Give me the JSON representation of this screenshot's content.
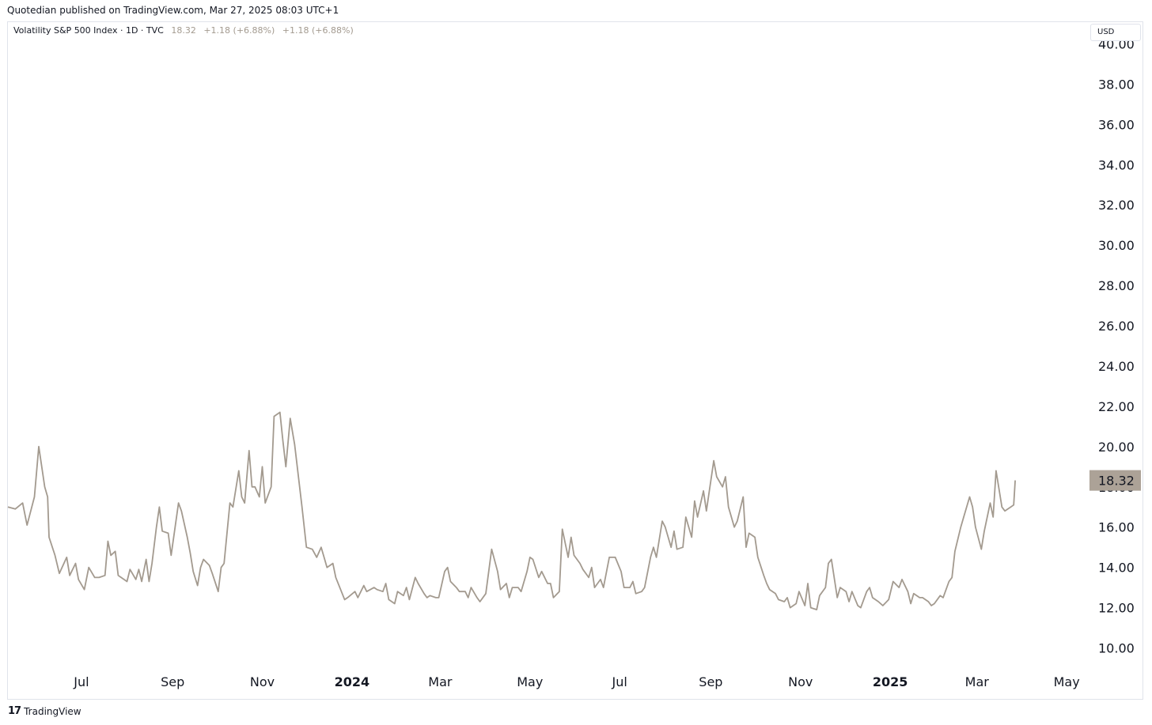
{
  "header": {
    "attribution": "Quotedian published on TradingView.com, Mar 27, 2025 08:03 UTC+1"
  },
  "legend": {
    "symbol": "Volatility S&P 500 Index · 1D · TVC",
    "last": "18.32",
    "change1": "+1.18 (+6.88%)",
    "change2": "+1.18 (+6.88%)"
  },
  "currency_button": "USD",
  "footer": {
    "logo": "17",
    "brand": "TradingView"
  },
  "colors": {
    "line": "#a39a8f",
    "label_bg": "#aca297",
    "axis_text": "#131722",
    "border": "#e0e3eb"
  },
  "chart_data": {
    "type": "line",
    "title": "Volatility S&P 500 Index",
    "xlabel": "",
    "ylabel": "",
    "ylim": [
      9.0,
      41.0
    ],
    "y_ticks": [
      "10.00",
      "12.00",
      "14.00",
      "16.00",
      "18.00",
      "20.00",
      "22.00",
      "24.00",
      "26.00",
      "28.00",
      "30.00",
      "32.00",
      "34.00",
      "36.00",
      "38.00",
      "40.00"
    ],
    "x_ticks": [
      {
        "label": "Jul",
        "date": "2023-07-01",
        "bold": false
      },
      {
        "label": "Sep",
        "date": "2023-09-01",
        "bold": false
      },
      {
        "label": "Nov",
        "date": "2023-11-01",
        "bold": false
      },
      {
        "label": "2024",
        "date": "2024-01-01",
        "bold": true
      },
      {
        "label": "Mar",
        "date": "2024-03-01",
        "bold": false
      },
      {
        "label": "May",
        "date": "2024-05-01",
        "bold": false
      },
      {
        "label": "Jul",
        "date": "2024-07-01",
        "bold": false
      },
      {
        "label": "Sep",
        "date": "2024-09-01",
        "bold": false
      },
      {
        "label": "Nov",
        "date": "2024-11-01",
        "bold": false
      },
      {
        "label": "2025",
        "date": "2025-01-01",
        "bold": true
      },
      {
        "label": "Mar",
        "date": "2025-03-01",
        "bold": false
      },
      {
        "label": "May",
        "date": "2025-05-01",
        "bold": false
      }
    ],
    "x_range": [
      "2023-05-12",
      "2025-05-16"
    ],
    "last_value": 18.32,
    "series": [
      {
        "name": "",
        "points": [
          [
            "2023-05-12",
            17.0
          ],
          [
            "2023-05-17",
            16.9
          ],
          [
            "2023-05-22",
            17.2
          ],
          [
            "2023-05-25",
            16.1
          ],
          [
            "2023-05-30",
            17.5
          ],
          [
            "2023-06-02",
            20.0
          ],
          [
            "2023-06-06",
            18.0
          ],
          [
            "2023-06-08",
            17.5
          ],
          [
            "2023-06-09",
            15.5
          ],
          [
            "2023-06-13",
            14.6
          ],
          [
            "2023-06-16",
            13.7
          ],
          [
            "2023-06-21",
            14.5
          ],
          [
            "2023-06-23",
            13.6
          ],
          [
            "2023-06-27",
            14.2
          ],
          [
            "2023-06-29",
            13.4
          ],
          [
            "2023-07-03",
            12.9
          ],
          [
            "2023-07-06",
            14.0
          ],
          [
            "2023-07-10",
            13.5
          ],
          [
            "2023-07-13",
            13.5
          ],
          [
            "2023-07-17",
            13.6
          ],
          [
            "2023-07-19",
            15.3
          ],
          [
            "2023-07-21",
            14.6
          ],
          [
            "2023-07-24",
            14.8
          ],
          [
            "2023-07-26",
            13.6
          ],
          [
            "2023-07-28",
            13.5
          ],
          [
            "2023-08-01",
            13.3
          ],
          [
            "2023-08-03",
            13.9
          ],
          [
            "2023-08-07",
            13.4
          ],
          [
            "2023-08-09",
            13.9
          ],
          [
            "2023-08-11",
            13.3
          ],
          [
            "2023-08-14",
            14.4
          ],
          [
            "2023-08-16",
            13.3
          ],
          [
            "2023-08-18",
            14.2
          ],
          [
            "2023-08-21",
            16.0
          ],
          [
            "2023-08-23",
            17.0
          ],
          [
            "2023-08-25",
            15.8
          ],
          [
            "2023-08-29",
            15.7
          ],
          [
            "2023-08-31",
            14.6
          ],
          [
            "2023-09-05",
            17.2
          ],
          [
            "2023-09-07",
            16.8
          ],
          [
            "2023-09-11",
            15.5
          ],
          [
            "2023-09-13",
            14.7
          ],
          [
            "2023-09-15",
            13.8
          ],
          [
            "2023-09-18",
            13.1
          ],
          [
            "2023-09-20",
            14.0
          ],
          [
            "2023-09-22",
            14.4
          ],
          [
            "2023-09-26",
            14.1
          ],
          [
            "2023-09-28",
            13.7
          ],
          [
            "2023-10-02",
            12.8
          ],
          [
            "2023-10-04",
            14.0
          ],
          [
            "2023-10-06",
            14.2
          ],
          [
            "2023-10-10",
            17.2
          ],
          [
            "2023-10-12",
            17.0
          ],
          [
            "2023-10-16",
            18.8
          ],
          [
            "2023-10-18",
            17.5
          ],
          [
            "2023-10-20",
            17.2
          ],
          [
            "2023-10-23",
            19.8
          ],
          [
            "2023-10-25",
            18.0
          ],
          [
            "2023-10-27",
            18.0
          ],
          [
            "2023-10-30",
            17.5
          ],
          [
            "2023-11-01",
            19.0
          ],
          [
            "2023-11-03",
            17.2
          ],
          [
            "2023-11-07",
            18.0
          ],
          [
            "2023-11-09",
            21.5
          ],
          [
            "2023-11-13",
            21.7
          ],
          [
            "2023-11-15",
            20.3
          ],
          [
            "2023-11-17",
            19.0
          ],
          [
            "2023-11-20",
            21.4
          ],
          [
            "2023-11-23",
            20.1
          ],
          [
            "2023-11-28",
            17.0
          ],
          [
            "2023-12-01",
            15.0
          ],
          [
            "2023-12-05",
            14.9
          ],
          [
            "2023-12-08",
            14.5
          ],
          [
            "2023-12-11",
            15.0
          ],
          [
            "2023-12-13",
            14.5
          ],
          [
            "2023-12-15",
            14.0
          ],
          [
            "2023-12-19",
            14.2
          ],
          [
            "2023-12-21",
            13.5
          ],
          [
            "2023-12-27",
            12.4
          ],
          [
            "2023-12-29",
            12.5
          ],
          [
            "2024-01-03",
            12.8
          ],
          [
            "2024-01-05",
            12.5
          ],
          [
            "2024-01-09",
            13.1
          ],
          [
            "2024-01-11",
            12.8
          ],
          [
            "2024-01-16",
            13.0
          ],
          [
            "2024-01-18",
            12.9
          ],
          [
            "2024-01-22",
            12.8
          ],
          [
            "2024-01-24",
            13.2
          ],
          [
            "2024-01-26",
            12.4
          ],
          [
            "2024-01-30",
            12.2
          ],
          [
            "2024-02-01",
            12.8
          ],
          [
            "2024-02-05",
            12.6
          ],
          [
            "2024-02-07",
            13.0
          ],
          [
            "2024-02-09",
            12.4
          ],
          [
            "2024-02-13",
            13.5
          ],
          [
            "2024-02-15",
            13.2
          ],
          [
            "2024-02-19",
            12.7
          ],
          [
            "2024-02-21",
            12.5
          ],
          [
            "2024-02-23",
            12.6
          ],
          [
            "2024-02-27",
            12.5
          ],
          [
            "2024-02-29",
            12.5
          ],
          [
            "2024-03-04",
            13.8
          ],
          [
            "2024-03-06",
            14.0
          ],
          [
            "2024-03-08",
            13.3
          ],
          [
            "2024-03-12",
            13.0
          ],
          [
            "2024-03-14",
            12.8
          ],
          [
            "2024-03-18",
            12.8
          ],
          [
            "2024-03-20",
            12.5
          ],
          [
            "2024-03-22",
            13.0
          ],
          [
            "2024-03-26",
            12.5
          ],
          [
            "2024-03-28",
            12.3
          ],
          [
            "2024-04-01",
            12.7
          ],
          [
            "2024-04-03",
            13.8
          ],
          [
            "2024-04-05",
            14.9
          ],
          [
            "2024-04-09",
            13.8
          ],
          [
            "2024-04-11",
            12.9
          ],
          [
            "2024-04-15",
            13.2
          ],
          [
            "2024-04-17",
            12.5
          ],
          [
            "2024-04-19",
            13.0
          ],
          [
            "2024-04-23",
            13.0
          ],
          [
            "2024-04-25",
            12.8
          ],
          [
            "2024-04-29",
            13.8
          ],
          [
            "2024-05-01",
            14.5
          ],
          [
            "2024-05-03",
            14.4
          ],
          [
            "2024-05-07",
            13.5
          ],
          [
            "2024-05-09",
            13.8
          ],
          [
            "2024-05-13",
            13.2
          ],
          [
            "2024-05-15",
            13.2
          ],
          [
            "2024-05-17",
            12.5
          ],
          [
            "2024-05-21",
            12.8
          ],
          [
            "2024-05-23",
            15.9
          ],
          [
            "2024-05-27",
            14.5
          ],
          [
            "2024-05-29",
            15.5
          ],
          [
            "2024-05-31",
            14.6
          ],
          [
            "2024-06-04",
            14.2
          ],
          [
            "2024-06-06",
            13.9
          ],
          [
            "2024-06-10",
            13.5
          ],
          [
            "2024-06-12",
            14.0
          ],
          [
            "2024-06-14",
            13.0
          ],
          [
            "2024-06-18",
            13.4
          ],
          [
            "2024-06-20",
            13.0
          ],
          [
            "2024-06-24",
            14.5
          ],
          [
            "2024-06-26",
            14.5
          ],
          [
            "2024-06-28",
            14.5
          ],
          [
            "2024-07-02",
            13.8
          ],
          [
            "2024-07-04",
            13.0
          ],
          [
            "2024-07-08",
            13.0
          ],
          [
            "2024-07-10",
            13.3
          ],
          [
            "2024-07-12",
            12.7
          ],
          [
            "2024-07-16",
            12.8
          ],
          [
            "2024-07-18",
            13.0
          ],
          [
            "2024-07-22",
            14.5
          ],
          [
            "2024-07-24",
            15.0
          ],
          [
            "2024-07-26",
            14.5
          ],
          [
            "2024-07-30",
            16.3
          ],
          [
            "2024-08-01",
            16.0
          ],
          [
            "2024-08-05",
            15.0
          ],
          [
            "2024-08-07",
            15.8
          ],
          [
            "2024-08-09",
            14.9
          ],
          [
            "2024-08-13",
            15.0
          ],
          [
            "2024-08-15",
            16.5
          ],
          [
            "2024-08-19",
            15.5
          ],
          [
            "2024-08-21",
            17.3
          ],
          [
            "2024-08-23",
            16.5
          ],
          [
            "2024-08-27",
            17.8
          ],
          [
            "2024-08-29",
            16.8
          ],
          [
            "2024-09-03",
            19.3
          ],
          [
            "2024-09-05",
            18.5
          ],
          [
            "2024-09-09",
            18.0
          ],
          [
            "2024-09-11",
            18.5
          ],
          [
            "2024-09-13",
            17.0
          ],
          [
            "2024-09-17",
            16.0
          ],
          [
            "2024-09-19",
            16.3
          ],
          [
            "2024-09-23",
            17.5
          ],
          [
            "2024-09-25",
            15.0
          ],
          [
            "2024-09-27",
            15.7
          ],
          [
            "2024-10-01",
            15.5
          ],
          [
            "2024-10-03",
            14.5
          ],
          [
            "2024-10-07",
            13.6
          ],
          [
            "2024-10-09",
            13.2
          ],
          [
            "2024-10-11",
            12.9
          ],
          [
            "2024-10-15",
            12.7
          ],
          [
            "2024-10-17",
            12.4
          ],
          [
            "2024-10-21",
            12.3
          ],
          [
            "2024-10-23",
            12.5
          ],
          [
            "2024-10-25",
            12.0
          ],
          [
            "2024-10-29",
            12.2
          ],
          [
            "2024-10-31",
            12.8
          ],
          [
            "2024-11-04",
            12.1
          ],
          [
            "2024-11-06",
            13.2
          ],
          [
            "2024-11-08",
            12.0
          ],
          [
            "2024-11-12",
            11.9
          ],
          [
            "2024-11-14",
            12.6
          ],
          [
            "2024-11-18",
            13.0
          ],
          [
            "2024-11-20",
            14.2
          ],
          [
            "2024-11-22",
            14.4
          ],
          [
            "2024-11-26",
            12.5
          ],
          [
            "2024-11-28",
            13.0
          ],
          [
            "2024-12-02",
            12.8
          ],
          [
            "2024-12-04",
            12.3
          ],
          [
            "2024-12-06",
            12.8
          ],
          [
            "2024-12-10",
            12.1
          ],
          [
            "2024-12-12",
            12.0
          ],
          [
            "2024-12-16",
            12.8
          ],
          [
            "2024-12-18",
            13.0
          ],
          [
            "2024-12-20",
            12.5
          ],
          [
            "2024-12-24",
            12.3
          ],
          [
            "2024-12-27",
            12.1
          ],
          [
            "2024-12-31",
            12.4
          ],
          [
            "2025-01-03",
            13.3
          ],
          [
            "2025-01-07",
            13.0
          ],
          [
            "2025-01-09",
            13.4
          ],
          [
            "2025-01-13",
            12.8
          ],
          [
            "2025-01-15",
            12.2
          ],
          [
            "2025-01-17",
            12.7
          ],
          [
            "2025-01-21",
            12.5
          ],
          [
            "2025-01-23",
            12.5
          ],
          [
            "2025-01-27",
            12.3
          ],
          [
            "2025-01-29",
            12.1
          ],
          [
            "2025-01-31",
            12.2
          ],
          [
            "2025-02-04",
            12.6
          ],
          [
            "2025-02-06",
            12.5
          ],
          [
            "2025-02-10",
            13.3
          ],
          [
            "2025-02-12",
            13.5
          ],
          [
            "2025-02-14",
            14.8
          ],
          [
            "2025-02-18",
            16.0
          ],
          [
            "2025-02-20",
            16.5
          ],
          [
            "2025-02-24",
            17.5
          ],
          [
            "2025-02-26",
            17.0
          ],
          [
            "2025-02-28",
            16.0
          ],
          [
            "2025-03-04",
            14.9
          ],
          [
            "2025-03-06",
            15.8
          ],
          [
            "2025-03-10",
            17.2
          ],
          [
            "2025-03-12",
            16.5
          ],
          [
            "2025-03-14",
            18.8
          ],
          [
            "2025-03-18",
            17.0
          ],
          [
            "2025-03-20",
            16.8
          ],
          [
            "2025-03-24",
            17.0
          ],
          [
            "2025-03-26",
            17.1
          ],
          [
            "2025-03-27",
            18.32
          ]
        ]
      }
    ]
  }
}
